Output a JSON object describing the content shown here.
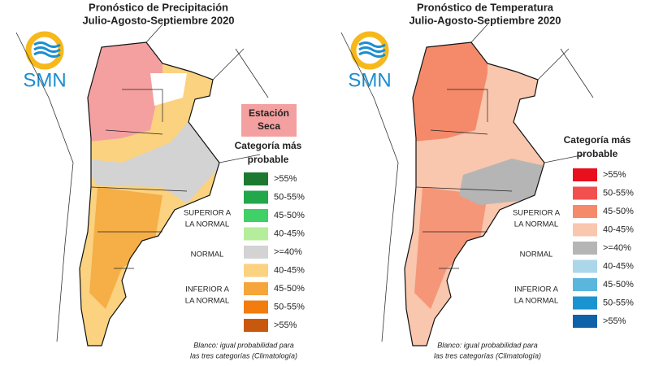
{
  "panels": [
    {
      "title": [
        "Pronóstico de Precipitación",
        "Julio-Agosto-Septiembre 2020"
      ],
      "logo": "SMN",
      "badge": [
        "Estación",
        "Seca"
      ],
      "legend_title": [
        "Categoría más",
        "probable"
      ],
      "legend": [
        {
          "label": ">55%",
          "color": "#1b7a2f"
        },
        {
          "label": "50-55%",
          "color": "#22a84a"
        },
        {
          "label": "45-50%",
          "color": "#3fd167"
        },
        {
          "label": "40-45%",
          "color": "#b5ee9a"
        },
        {
          "label": ">=40%",
          "color": "#d3d3d3"
        },
        {
          "label": "40-45%",
          "color": "#fbd27f"
        },
        {
          "label": "45-50%",
          "color": "#f5a53a"
        },
        {
          "label": "50-55%",
          "color": "#f27c0e"
        },
        {
          "label": ">55%",
          "color": "#c9580f"
        }
      ],
      "groups": [
        [
          "SUPERIOR A",
          "LA NORMAL"
        ],
        [
          "NORMAL"
        ],
        [
          "INFERIOR A",
          "LA NORMAL"
        ]
      ],
      "note": [
        "Blanco: igual probabilidad para",
        "las tres categorías (Climatología)"
      ]
    },
    {
      "title": [
        "Pronóstico de Temperatura",
        "Julio-Agosto-Septiembre 2020"
      ],
      "logo": "SMN",
      "legend_title": [
        "Categoría más",
        "probable"
      ],
      "legend": [
        {
          "label": ">55%",
          "color": "#e8101e"
        },
        {
          "label": "50-55%",
          "color": "#f24f4f"
        },
        {
          "label": "45-50%",
          "color": "#f48a6a"
        },
        {
          "label": "40-45%",
          "color": "#f9c6ae"
        },
        {
          "label": ">=40%",
          "color": "#b5b5b5"
        },
        {
          "label": "40-45%",
          "color": "#abd7ea"
        },
        {
          "label": "45-50%",
          "color": "#5ab6dd"
        },
        {
          "label": "50-55%",
          "color": "#1a94d0"
        },
        {
          "label": ">55%",
          "color": "#0d62a8"
        }
      ],
      "groups": [
        [
          "SUPERIOR A",
          "LA NORMAL"
        ],
        [
          "NORMAL"
        ],
        [
          "INFERIOR A",
          "LA NORMAL"
        ]
      ],
      "note": [
        "Blanco: igual probabilidad para",
        "las tres categorías (Climatología)"
      ]
    }
  ]
}
